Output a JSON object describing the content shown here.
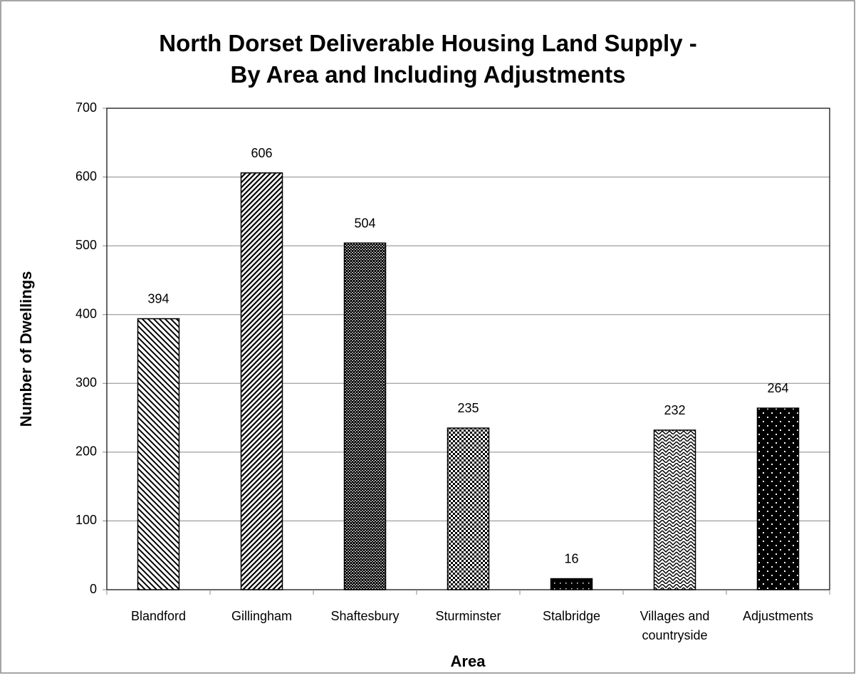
{
  "chart_data": {
    "type": "bar",
    "title": [
      "North Dorset Deliverable Housing Land Supply -",
      "By Area and Including Adjustments"
    ],
    "x_label": "Area",
    "y_label": "Number of Dwellings",
    "categories": [
      "Blandford",
      "Gillingham",
      "Shaftesbury",
      "Sturminster",
      "Stalbridge",
      "Villages and countryside",
      "Adjustments"
    ],
    "values": [
      394,
      606,
      504,
      235,
      16,
      232,
      264
    ],
    "ylim": [
      0,
      700
    ],
    "yticks": [
      0,
      100,
      200,
      300,
      400,
      500,
      600,
      700
    ],
    "grid": true
  }
}
